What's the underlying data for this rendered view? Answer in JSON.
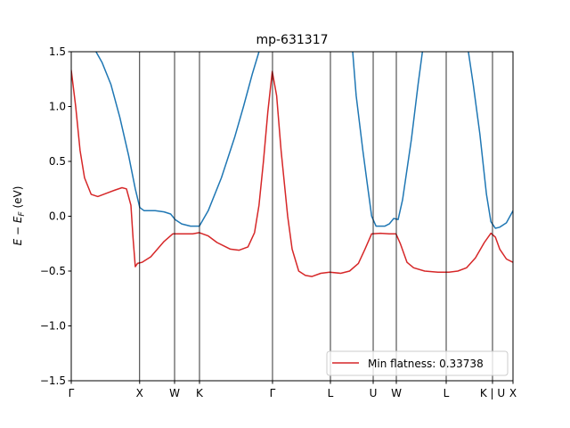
{
  "chart_data": {
    "type": "line",
    "title": "mp-631317",
    "ylabel": "E − E_F (eV)",
    "ylabel_parts": [
      "E − E",
      "F",
      " (eV)"
    ],
    "xlim": [
      0,
      1
    ],
    "ylim": [
      -1.5,
      1.5
    ],
    "yticks": [
      -1.5,
      -1.0,
      -0.5,
      0.0,
      0.5,
      1.0,
      1.5
    ],
    "ytick_labels": [
      "−1.5",
      "−1.0",
      "−0.5",
      "0.0",
      "0.5",
      "1.0",
      "1.5"
    ],
    "xticks": [
      {
        "label": "Γ",
        "x": 0.0
      },
      {
        "label": "X",
        "x": 0.1548
      },
      {
        "label": "W",
        "x": 0.2339
      },
      {
        "label": "K",
        "x": 0.2903
      },
      {
        "label": "Γ",
        "x": 0.4556
      },
      {
        "label": "L",
        "x": 0.5867
      },
      {
        "label": "U",
        "x": 0.6835
      },
      {
        "label": "W",
        "x": 0.7359
      },
      {
        "label": "L",
        "x": 0.8488
      },
      {
        "label": "K | U",
        "x": 0.9536
      },
      {
        "label": "X",
        "x": 1.0
      }
    ],
    "grid": false,
    "legend": {
      "position": "lower right",
      "entries": [
        {
          "label": "Min flatness: 0.33738",
          "color": "#d62728"
        }
      ]
    },
    "series": [
      {
        "name": "",
        "color": "#1f77b4",
        "segments": [
          [
            [
              0.056,
              1.5
            ],
            [
              0.07,
              1.4
            ],
            [
              0.09,
              1.2
            ],
            [
              0.11,
              0.9
            ],
            [
              0.13,
              0.55
            ],
            [
              0.145,
              0.25
            ],
            [
              0.155,
              0.08
            ],
            [
              0.165,
              0.05
            ],
            [
              0.19,
              0.05
            ],
            [
              0.21,
              0.04
            ],
            [
              0.225,
              0.02
            ],
            [
              0.235,
              -0.03
            ],
            [
              0.25,
              -0.07
            ],
            [
              0.27,
              -0.09
            ],
            [
              0.29,
              -0.09
            ],
            [
              0.31,
              0.05
            ],
            [
              0.34,
              0.35
            ],
            [
              0.37,
              0.72
            ],
            [
              0.39,
              1.0
            ],
            [
              0.41,
              1.3
            ],
            [
              0.425,
              1.5
            ]
          ],
          [
            [
              0.637,
              1.5
            ],
            [
              0.645,
              1.1
            ],
            [
              0.66,
              0.6
            ],
            [
              0.67,
              0.3
            ],
            [
              0.68,
              0.0
            ],
            [
              0.69,
              -0.09
            ],
            [
              0.71,
              -0.09
            ],
            [
              0.72,
              -0.07
            ],
            [
              0.73,
              -0.02
            ],
            [
              0.74,
              -0.03
            ],
            [
              0.75,
              0.15
            ],
            [
              0.77,
              0.7
            ],
            [
              0.785,
              1.2
            ],
            [
              0.795,
              1.5
            ]
          ],
          [
            [
              0.899,
              1.5
            ],
            [
              0.91,
              1.2
            ],
            [
              0.925,
              0.75
            ],
            [
              0.94,
              0.2
            ],
            [
              0.95,
              -0.05
            ],
            [
              0.96,
              -0.11
            ],
            [
              0.97,
              -0.1
            ],
            [
              0.985,
              -0.06
            ],
            [
              1.0,
              0.05
            ]
          ]
        ]
      },
      {
        "name": "Min flatness: 0.33738",
        "color": "#d62728",
        "segments": [
          [
            [
              0.0,
              1.33
            ],
            [
              0.01,
              1.0
            ],
            [
              0.02,
              0.6
            ],
            [
              0.03,
              0.35
            ],
            [
              0.045,
              0.2
            ],
            [
              0.06,
              0.18
            ],
            [
              0.08,
              0.21
            ],
            [
              0.1,
              0.24
            ],
            [
              0.115,
              0.26
            ],
            [
              0.125,
              0.25
            ],
            [
              0.135,
              0.1
            ],
            [
              0.14,
              -0.2
            ],
            [
              0.145,
              -0.46
            ],
            [
              0.15,
              -0.43
            ],
            [
              0.16,
              -0.42
            ],
            [
              0.18,
              -0.37
            ],
            [
              0.21,
              -0.23
            ],
            [
              0.23,
              -0.16
            ],
            [
              0.25,
              -0.16
            ],
            [
              0.275,
              -0.16
            ],
            [
              0.29,
              -0.15
            ],
            [
              0.31,
              -0.18
            ],
            [
              0.33,
              -0.24
            ],
            [
              0.36,
              -0.3
            ],
            [
              0.38,
              -0.31
            ],
            [
              0.4,
              -0.28
            ],
            [
              0.415,
              -0.15
            ],
            [
              0.425,
              0.1
            ],
            [
              0.435,
              0.5
            ],
            [
              0.445,
              0.95
            ],
            [
              0.455,
              1.32
            ],
            [
              0.465,
              1.1
            ],
            [
              0.475,
              0.6
            ],
            [
              0.49,
              0.0
            ],
            [
              0.5,
              -0.3
            ],
            [
              0.515,
              -0.5
            ],
            [
              0.53,
              -0.54
            ],
            [
              0.545,
              -0.55
            ],
            [
              0.565,
              -0.52
            ],
            [
              0.585,
              -0.51
            ],
            [
              0.61,
              -0.52
            ],
            [
              0.63,
              -0.5
            ],
            [
              0.65,
              -0.43
            ],
            [
              0.665,
              -0.3
            ],
            [
              0.68,
              -0.16
            ],
            [
              0.7,
              -0.155
            ],
            [
              0.72,
              -0.16
            ],
            [
              0.735,
              -0.16
            ],
            [
              0.745,
              -0.25
            ],
            [
              0.76,
              -0.42
            ],
            [
              0.775,
              -0.47
            ],
            [
              0.8,
              -0.5
            ],
            [
              0.83,
              -0.51
            ],
            [
              0.855,
              -0.51
            ],
            [
              0.875,
              -0.5
            ],
            [
              0.895,
              -0.47
            ],
            [
              0.915,
              -0.38
            ],
            [
              0.935,
              -0.24
            ],
            [
              0.95,
              -0.155
            ],
            [
              0.96,
              -0.19
            ],
            [
              0.97,
              -0.3
            ],
            [
              0.985,
              -0.39
            ],
            [
              1.0,
              -0.42
            ]
          ]
        ]
      }
    ]
  }
}
